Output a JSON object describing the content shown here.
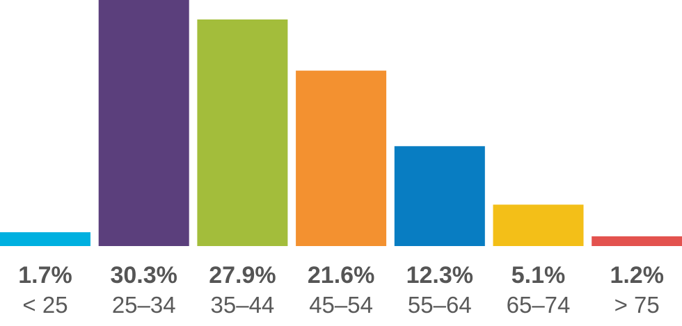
{
  "chart_data": {
    "type": "bar",
    "categories": [
      "< 25",
      "25–34",
      "35–44",
      "45–54",
      "55–64",
      "65–74",
      "> 75"
    ],
    "values": [
      1.7,
      30.3,
      27.9,
      21.6,
      12.3,
      5.1,
      1.2
    ],
    "value_labels": [
      "1.7%",
      "30.3%",
      "27.9%",
      "21.6%",
      "12.3%",
      "5.1%",
      "1.2%"
    ],
    "colors": [
      "#00b0e0",
      "#5b3f7c",
      "#a3bd3b",
      "#f39130",
      "#087dc2",
      "#f3bf18",
      "#e3524e"
    ],
    "ylim": [
      0,
      30.3
    ],
    "grid": false,
    "legend": "none"
  }
}
